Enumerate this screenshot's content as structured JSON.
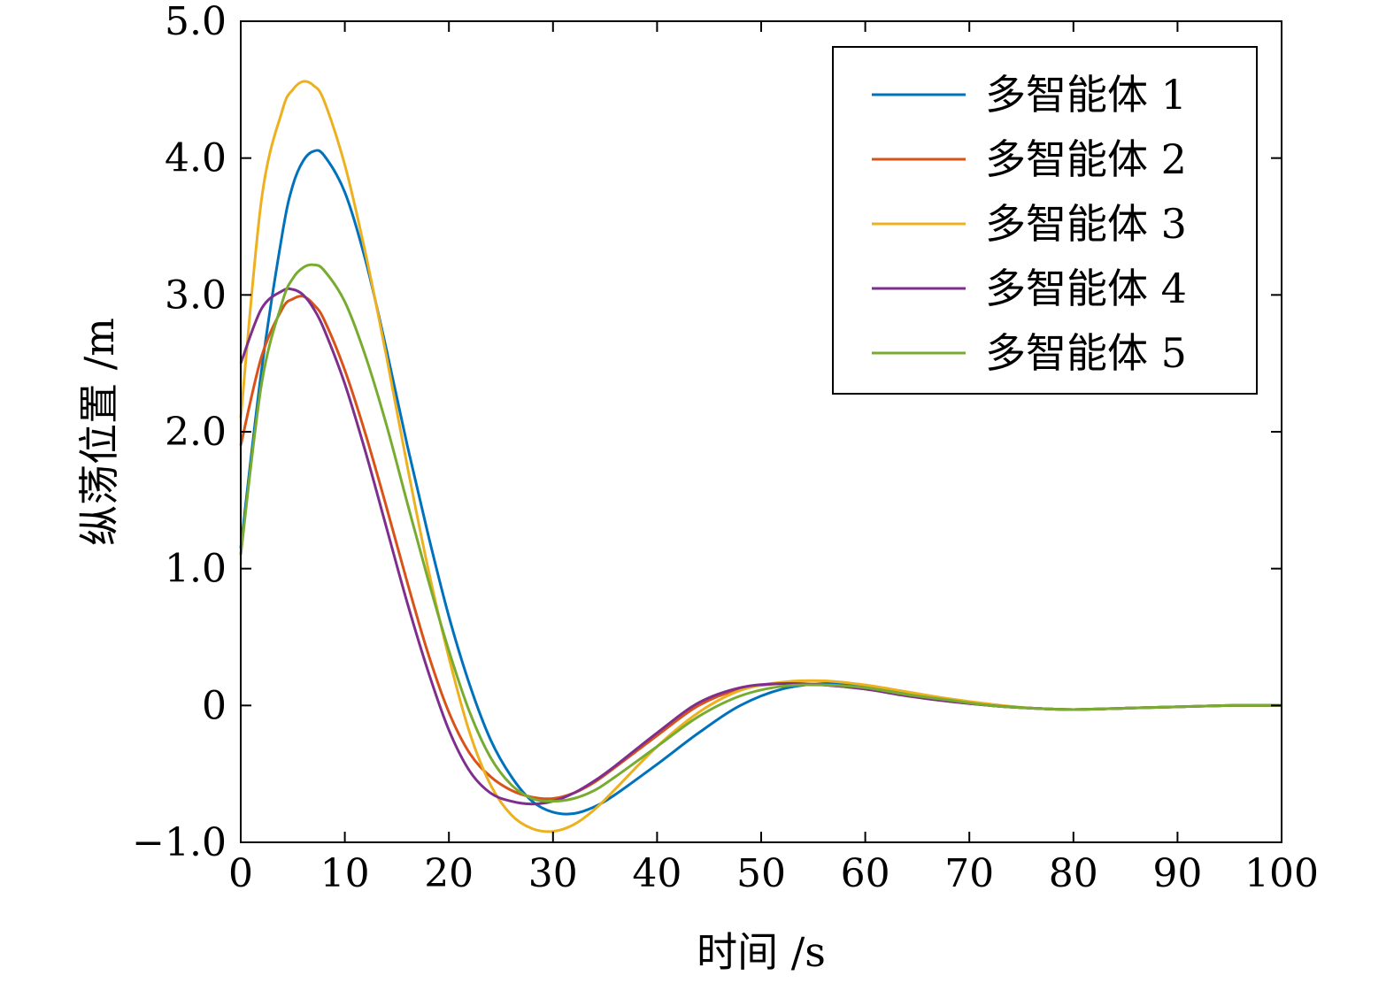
{
  "chart_data": {
    "type": "line",
    "xlabel": "时间 /s",
    "ylabel": "纵荡位置 /m",
    "xlim": [
      0,
      100
    ],
    "ylim": [
      -1.0,
      5.0
    ],
    "xticks": [
      0,
      10,
      20,
      30,
      40,
      50,
      60,
      70,
      80,
      90,
      100
    ],
    "xtick_labels": [
      "0",
      "10",
      "20",
      "30",
      "40",
      "50",
      "60",
      "70",
      "80",
      "90",
      "100"
    ],
    "yticks": [
      -1,
      0,
      1,
      2,
      3,
      4,
      5
    ],
    "ytick_labels": [
      "−1.0",
      "0",
      "1.0",
      "2.0",
      "3.0",
      "4.0",
      "5.0"
    ],
    "grid": false,
    "legend": "top-right",
    "x": [
      0,
      2,
      4,
      5,
      6,
      7,
      8,
      10,
      12,
      14,
      16,
      18,
      20,
      22,
      24,
      26,
      28,
      30,
      32,
      34,
      36,
      40,
      44,
      48,
      52,
      56,
      60,
      64,
      68,
      72,
      76,
      80,
      85,
      90,
      95,
      100
    ],
    "series": [
      {
        "name": "多智能体 1",
        "color": "#0072BD",
        "values": [
          1.15,
          2.45,
          3.45,
          3.8,
          3.98,
          4.05,
          4.02,
          3.75,
          3.25,
          2.6,
          1.9,
          1.25,
          0.65,
          0.15,
          -0.25,
          -0.52,
          -0.7,
          -0.78,
          -0.79,
          -0.74,
          -0.65,
          -0.43,
          -0.2,
          0.0,
          0.12,
          0.16,
          0.14,
          0.09,
          0.04,
          0.0,
          -0.02,
          -0.03,
          -0.02,
          -0.01,
          0.0,
          0.0
        ]
      },
      {
        "name": "多智能体 2",
        "color": "#D95319",
        "values": [
          1.9,
          2.55,
          2.9,
          2.97,
          2.99,
          2.93,
          2.82,
          2.45,
          1.98,
          1.45,
          0.9,
          0.38,
          -0.05,
          -0.35,
          -0.52,
          -0.62,
          -0.67,
          -0.68,
          -0.64,
          -0.56,
          -0.45,
          -0.22,
          0.0,
          0.12,
          0.16,
          0.15,
          0.12,
          0.07,
          0.03,
          0.0,
          -0.02,
          -0.03,
          -0.02,
          -0.01,
          0.0,
          0.0
        ]
      },
      {
        "name": "多智能体 3",
        "color": "#EDB120",
        "values": [
          2.1,
          3.7,
          4.35,
          4.5,
          4.56,
          4.53,
          4.42,
          3.95,
          3.3,
          2.55,
          1.75,
          1.0,
          0.35,
          -0.2,
          -0.58,
          -0.8,
          -0.9,
          -0.92,
          -0.87,
          -0.76,
          -0.61,
          -0.3,
          -0.05,
          0.11,
          0.17,
          0.18,
          0.15,
          0.1,
          0.05,
          0.01,
          -0.02,
          -0.03,
          -0.02,
          -0.01,
          0.0,
          0.0
        ]
      },
      {
        "name": "多智能体 4",
        "color": "#7E2F8E",
        "values": [
          2.5,
          2.9,
          3.03,
          3.04,
          3.0,
          2.9,
          2.75,
          2.35,
          1.85,
          1.3,
          0.75,
          0.25,
          -0.18,
          -0.48,
          -0.64,
          -0.7,
          -0.72,
          -0.7,
          -0.64,
          -0.55,
          -0.44,
          -0.2,
          0.02,
          0.13,
          0.16,
          0.15,
          0.12,
          0.07,
          0.03,
          0.0,
          -0.02,
          -0.03,
          -0.02,
          -0.01,
          0.0,
          0.0
        ]
      },
      {
        "name": "多智能体 5",
        "color": "#77AC30",
        "values": [
          1.1,
          2.35,
          2.95,
          3.12,
          3.2,
          3.22,
          3.18,
          2.95,
          2.55,
          2.05,
          1.48,
          0.92,
          0.4,
          -0.05,
          -0.38,
          -0.58,
          -0.68,
          -0.7,
          -0.68,
          -0.62,
          -0.52,
          -0.3,
          -0.08,
          0.07,
          0.14,
          0.15,
          0.13,
          0.08,
          0.04,
          0.0,
          -0.02,
          -0.03,
          -0.02,
          -0.01,
          0.0,
          0.0
        ]
      }
    ]
  }
}
